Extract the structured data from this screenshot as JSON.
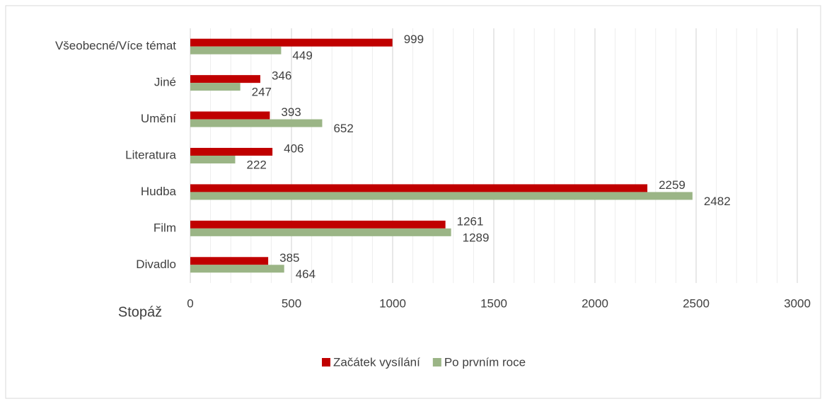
{
  "chart_data": {
    "type": "bar",
    "orientation": "horizontal",
    "x_label": "Stopáž",
    "categories": [
      "Všeobecné/Více témat",
      "Jiné",
      "Umění",
      "Literatura",
      "Hudba",
      "Film",
      "Divadlo"
    ],
    "series": [
      {
        "name": "Začátek vysílání",
        "color": "#c00000",
        "values": [
          999,
          346,
          393,
          406,
          2259,
          1261,
          385
        ]
      },
      {
        "name": "Po prvním roce",
        "color": "#9bb586",
        "values": [
          449,
          247,
          652,
          222,
          2482,
          1289,
          464
        ]
      }
    ],
    "xlim": [
      0,
      3000
    ],
    "xticks": [
      0,
      500,
      1000,
      1500,
      2000,
      2500,
      3000
    ],
    "grid": true,
    "minor_grid_step": 100,
    "legend": "bottom"
  }
}
